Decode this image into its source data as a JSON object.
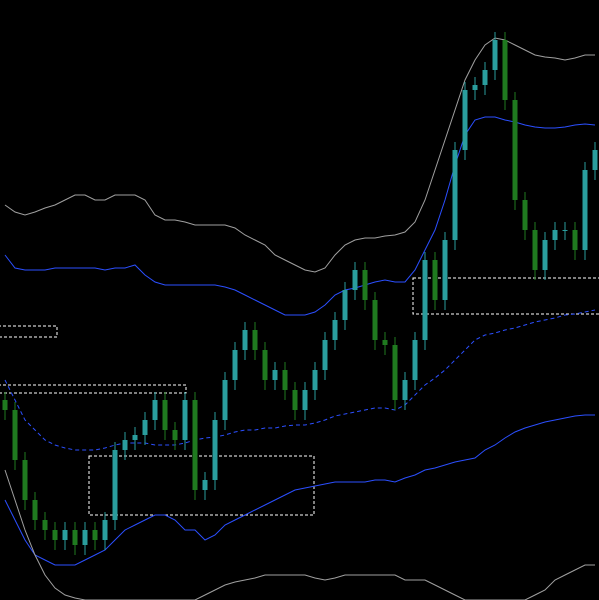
{
  "chart_data": {
    "type": "candlestick",
    "ylim": [
      0,
      600
    ],
    "up_color": "#2a9d9d",
    "down_color": "#1f7a1f",
    "background": "#000000",
    "candles": [
      [
        200,
        208,
        180,
        190
      ],
      [
        190,
        198,
        130,
        140
      ],
      [
        140,
        148,
        90,
        100
      ],
      [
        100,
        108,
        70,
        80
      ],
      [
        80,
        88,
        60,
        70
      ],
      [
        70,
        78,
        50,
        60
      ],
      [
        60,
        78,
        50,
        70
      ],
      [
        70,
        78,
        45,
        55
      ],
      [
        55,
        78,
        45,
        70
      ],
      [
        70,
        78,
        50,
        60
      ],
      [
        60,
        88,
        50,
        80
      ],
      [
        80,
        158,
        70,
        150
      ],
      [
        150,
        168,
        140,
        160
      ],
      [
        160,
        173,
        150,
        165
      ],
      [
        165,
        188,
        155,
        180
      ],
      [
        180,
        208,
        170,
        200
      ],
      [
        200,
        208,
        160,
        170
      ],
      [
        170,
        178,
        150,
        160
      ],
      [
        160,
        208,
        150,
        200
      ],
      [
        200,
        208,
        100,
        110
      ],
      [
        110,
        128,
        100,
        120
      ],
      [
        120,
        188,
        110,
        180
      ],
      [
        180,
        228,
        170,
        220
      ],
      [
        220,
        258,
        210,
        250
      ],
      [
        250,
        278,
        240,
        270
      ],
      [
        270,
        278,
        240,
        250
      ],
      [
        250,
        258,
        210,
        220
      ],
      [
        220,
        238,
        210,
        230
      ],
      [
        230,
        238,
        200,
        210
      ],
      [
        210,
        218,
        180,
        190
      ],
      [
        190,
        218,
        180,
        210
      ],
      [
        210,
        238,
        200,
        230
      ],
      [
        230,
        268,
        220,
        260
      ],
      [
        260,
        288,
        250,
        280
      ],
      [
        280,
        318,
        270,
        310
      ],
      [
        310,
        338,
        300,
        330
      ],
      [
        330,
        338,
        290,
        300
      ],
      [
        300,
        308,
        250,
        260
      ],
      [
        260,
        268,
        245,
        255
      ],
      [
        255,
        263,
        190,
        200
      ],
      [
        200,
        228,
        190,
        220
      ],
      [
        220,
        268,
        210,
        260
      ],
      [
        260,
        348,
        250,
        340
      ],
      [
        340,
        348,
        290,
        300
      ],
      [
        300,
        368,
        290,
        360
      ],
      [
        360,
        458,
        350,
        450
      ],
      [
        450,
        518,
        440,
        510
      ],
      [
        510,
        523,
        500,
        515
      ],
      [
        515,
        538,
        505,
        530
      ],
      [
        530,
        568,
        520,
        560
      ],
      [
        560,
        568,
        490,
        500
      ],
      [
        500,
        508,
        390,
        400
      ],
      [
        400,
        408,
        360,
        370
      ],
      [
        370,
        378,
        320,
        330
      ],
      [
        330,
        368,
        320,
        360
      ],
      [
        360,
        378,
        350,
        370
      ],
      [
        370,
        378,
        360,
        370
      ],
      [
        370,
        378,
        340,
        350
      ],
      [
        350,
        438,
        340,
        430
      ],
      [
        430,
        458,
        420,
        450
      ]
    ],
    "series": [
      {
        "color": "#a0a0a0",
        "dashed": false,
        "values": [
          395,
          388,
          385,
          388,
          392,
          395,
          400,
          405,
          405,
          400,
          400,
          405,
          405,
          405,
          400,
          385,
          380,
          380,
          378,
          375,
          375,
          375,
          375,
          372,
          365,
          360,
          355,
          345,
          340,
          335,
          330,
          328,
          332,
          345,
          355,
          360,
          362,
          362,
          364,
          365,
          368,
          378,
          400,
          430,
          460,
          490,
          520,
          540,
          555,
          562,
          560,
          555,
          550,
          545,
          543,
          542,
          540,
          542,
          545,
          545
        ]
      },
      {
        "color": "#2b4fff",
        "dashed": false,
        "values": [
          345,
          332,
          330,
          330,
          330,
          332,
          332,
          332,
          332,
          332,
          330,
          332,
          332,
          335,
          325,
          318,
          315,
          315,
          315,
          315,
          315,
          315,
          313,
          310,
          305,
          300,
          295,
          290,
          285,
          285,
          285,
          288,
          295,
          305,
          310,
          312,
          315,
          318,
          320,
          318,
          318,
          330,
          350,
          370,
          400,
          435,
          465,
          480,
          483,
          483,
          480,
          478,
          475,
          473,
          472,
          472,
          473,
          475,
          476,
          475
        ]
      },
      {
        "color": "#2b4fff",
        "dashed": true,
        "values": [
          220,
          200,
          180,
          170,
          160,
          155,
          152,
          150,
          150,
          150,
          152,
          155,
          157,
          157,
          157,
          155,
          155,
          155,
          157,
          160,
          162,
          163,
          165,
          168,
          170,
          170,
          172,
          172,
          174,
          175,
          175,
          177,
          180,
          184,
          186,
          188,
          190,
          192,
          192,
          190,
          195,
          205,
          215,
          222,
          230,
          240,
          250,
          260,
          265,
          267,
          270,
          272,
          275,
          278,
          280,
          282,
          285,
          286,
          288,
          290
        ]
      },
      {
        "color": "#2b4fff",
        "dashed": false,
        "values": [
          100,
          80,
          60,
          45,
          40,
          35,
          35,
          35,
          40,
          45,
          50,
          60,
          70,
          75,
          80,
          85,
          85,
          80,
          70,
          70,
          60,
          65,
          75,
          80,
          85,
          90,
          95,
          100,
          105,
          110,
          112,
          114,
          116,
          118,
          118,
          118,
          118,
          120,
          120,
          118,
          122,
          125,
          130,
          132,
          135,
          138,
          140,
          142,
          150,
          155,
          162,
          168,
          172,
          175,
          178,
          180,
          182,
          184,
          185,
          185
        ]
      },
      {
        "color": "#a0a0a0",
        "dashed": false,
        "values": [
          130,
          100,
          70,
          45,
          25,
          12,
          5,
          2,
          0,
          0,
          0,
          0,
          0,
          0,
          0,
          0,
          0,
          0,
          0,
          0,
          5,
          10,
          15,
          18,
          20,
          22,
          25,
          25,
          25,
          25,
          25,
          22,
          20,
          22,
          25,
          25,
          25,
          25,
          25,
          25,
          20,
          20,
          20,
          15,
          10,
          5,
          0,
          0,
          0,
          0,
          0,
          0,
          0,
          5,
          10,
          20,
          25,
          30,
          35,
          35
        ]
      }
    ]
  }
}
